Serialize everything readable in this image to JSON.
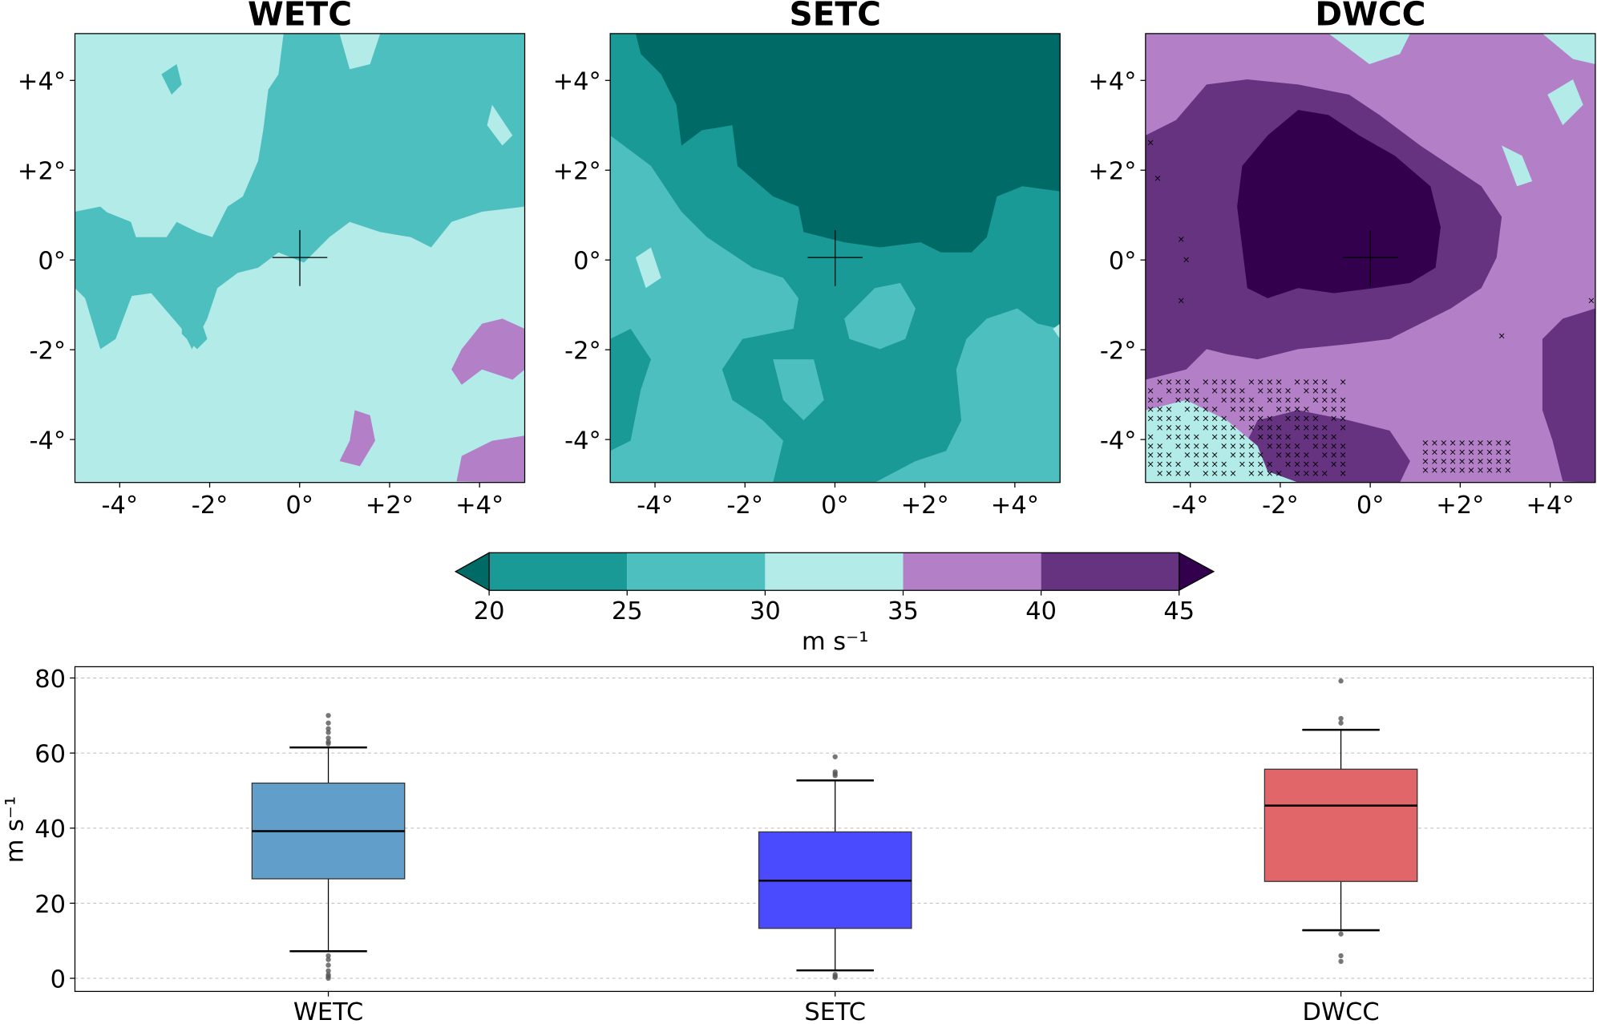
{
  "chart_data": [
    {
      "type": "heatmap",
      "panels": [
        {
          "title": "WETC"
        },
        {
          "title": "SETC"
        },
        {
          "title": "DWCC"
        }
      ],
      "xticks": [
        "-4°",
        "-2°",
        "0°",
        "+2°",
        "+4°"
      ],
      "yticks": [
        "+4°",
        "+2°",
        "0°",
        "-2°",
        "-4°"
      ],
      "xlim": [
        -5,
        5
      ],
      "ylim": [
        -5,
        5
      ],
      "center_marker": "plus at 0°,0°",
      "stippling": "x markers (DWCC only)",
      "colorbar": {
        "levels": [
          20,
          25,
          30,
          35,
          40,
          45
        ],
        "tick_labels": [
          "20",
          "25",
          "30",
          "35",
          "40",
          "45"
        ],
        "label": "m s⁻¹",
        "extend": "both",
        "colors": [
          "#006a66",
          "#1a9a96",
          "#4dbfbf",
          "#b2ebe8",
          "#b380c8",
          "#663380",
          "#33004d"
        ]
      }
    },
    {
      "type": "box",
      "categories": [
        "WETC",
        "SETC",
        "DWCC"
      ],
      "ylabel": "m s⁻¹",
      "ylim": [
        -3.5,
        83
      ],
      "yticks": [
        "0",
        "20",
        "40",
        "60",
        "80"
      ],
      "grid": true,
      "colors": [
        "#619fca",
        "#4a4aff",
        "#e0666a"
      ],
      "boxes": [
        {
          "q1": 26.5,
          "median": 39.2,
          "q3": 52,
          "whisker_low": 7.2,
          "whisker_high": 61.5,
          "fliers": [
            70,
            68,
            66.5,
            65.5,
            64,
            63,
            62.5,
            6,
            5,
            3.5,
            2,
            1,
            0.5,
            0
          ]
        },
        {
          "q1": 13.3,
          "median": 26,
          "q3": 39,
          "whisker_low": 2.1,
          "whisker_high": 52.7,
          "fliers": [
            59,
            55,
            54.5,
            54,
            1,
            0.5,
            0.2
          ]
        },
        {
          "q1": 25.8,
          "median": 46,
          "q3": 55.7,
          "whisker_low": 12.8,
          "whisker_high": 66.2,
          "fliers": [
            79.2,
            69.2,
            68,
            11.8,
            6,
            4.5
          ]
        }
      ]
    }
  ]
}
